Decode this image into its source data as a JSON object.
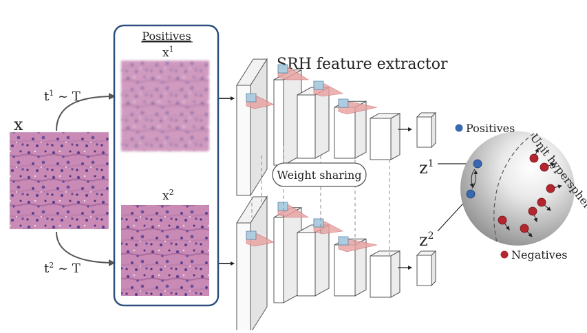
{
  "input": {
    "label": "x"
  },
  "augmentations": {
    "top": {
      "t": "t",
      "t_sup": "1",
      "rest": " ~ T"
    },
    "bottom": {
      "t": "t",
      "t_sup": "2",
      "rest": " ~ T"
    }
  },
  "positives_panel": {
    "title": "Positives",
    "view1": {
      "base": "x",
      "sup": "1"
    },
    "view2": {
      "base": "x",
      "sup": "2"
    }
  },
  "extractor": {
    "title": "SRH feature extractor",
    "weight_sharing": "Weight sharing"
  },
  "embeddings": {
    "z1": {
      "base": "z",
      "sup": "1"
    },
    "z2": {
      "base": "z",
      "sup": "2"
    }
  },
  "hypersphere": {
    "label": "Unit hypersphere",
    "positives_legend": "Positives",
    "negatives_legend": "Negatives"
  },
  "colors": {
    "panel_border": "#2c4f7f",
    "positive_dot": "#3a68b0",
    "negative_dot": "#b3262e",
    "tissue_pink": "#c98ab6",
    "tissue_purple": "#6a4f98",
    "filter_red": "#e9a0a0",
    "filter_blue": "#a8d0e6"
  }
}
